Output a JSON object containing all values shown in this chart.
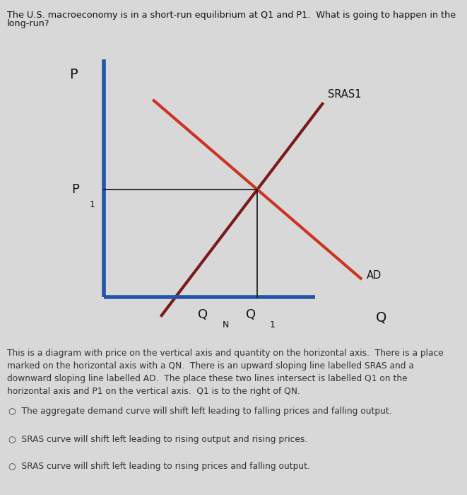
{
  "title_line1": "The U.S. macroeconomy is in a short-run equilibrium at Q1 and P1.  What is going to happen in the",
  "title_line2": "long-run?",
  "description": "This is a diagram with price on the vertical axis and quantity on the horizontal axis.  There is a place\nmarked on the horizontal axis with a QN.  There is an upward sloping line labelled SRAS and a\ndownward sloping line labelled AD.  The place these two lines intersect is labelled Q1 on the\nhorizontal axis and P1 on the vertical axis.  Q1 is to the right of QN.",
  "option1": "The aggregate demand curve will shift left leading to falling prices and falling output.",
  "option2": "SRAS curve will shift left leading to rising output and rising prices.",
  "option3": "SRAS curve will shift left leading to rising prices and falling output.",
  "bg_color": "#d8d8d8",
  "page_bg": "#d8d8d8",
  "axes_color": "#2255aa",
  "sras_color": "#7a1a1a",
  "ad_color": "#cc3322",
  "text_color": "#111111",
  "desc_color": "#333333",
  "p_label": "P",
  "p1_label": "P",
  "p1_sub": "1",
  "qn_label": "Q",
  "qn_sub": "N",
  "q1_label": "Q",
  "q1_sub": "1",
  "q_label": "Q",
  "sras_label": "SRAS1",
  "ad_label": "AD"
}
